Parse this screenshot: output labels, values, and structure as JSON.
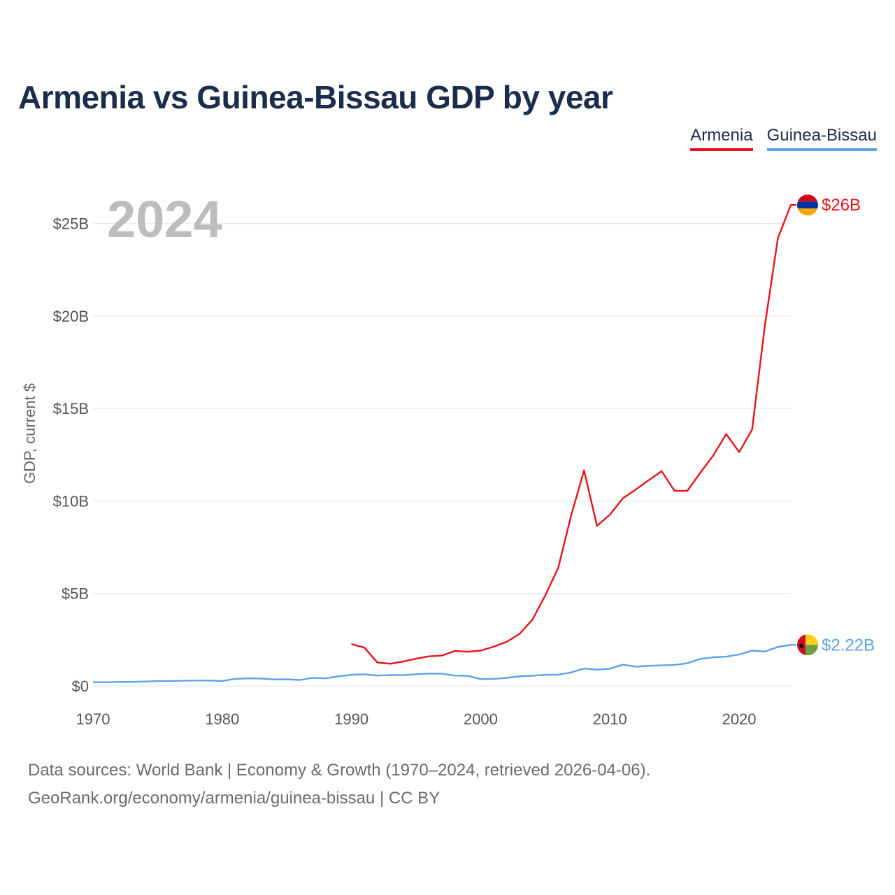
{
  "title": "Armenia vs Guinea-Bissau GDP by year",
  "legend": [
    {
      "name": "Armenia",
      "color": "#e8121a"
    },
    {
      "name": "Guinea-Bissau",
      "color": "#5ba3e6"
    }
  ],
  "current_year": "2024",
  "source_lines": [
    "Data sources: World Bank | Economy & Growth (1970–2024, retrieved 2026-04-06).",
    "GeoRank.org/economy/armenia/guinea-bissau | CC BY"
  ],
  "chart_data": {
    "type": "line",
    "title": "Armenia vs Guinea-Bissau GDP by year",
    "xlabel": "",
    "ylabel": "GDP, current $",
    "xlim": [
      1970,
      2024
    ],
    "ylim": [
      0,
      26.5
    ],
    "x_ticks": [
      1970,
      1980,
      1990,
      2000,
      2010,
      2020
    ],
    "x_tick_labels": [
      "1970",
      "1980",
      "1990",
      "2000",
      "2010",
      "2020"
    ],
    "y_ticks": [
      0,
      5,
      10,
      15,
      20,
      25
    ],
    "y_tick_labels": [
      "$0",
      "$5B",
      "$10B",
      "$15B",
      "$20B",
      "$25B"
    ],
    "grid": true,
    "legend_position": "top-right",
    "units": "billions of current US$",
    "series": [
      {
        "name": "Armenia",
        "color": "#e8121a",
        "end_label": "$26B",
        "x": [
          1990,
          1991,
          1992,
          1993,
          1994,
          1995,
          1996,
          1997,
          1998,
          1999,
          2000,
          2001,
          2002,
          2003,
          2004,
          2005,
          2006,
          2007,
          2008,
          2009,
          2010,
          2011,
          2012,
          2013,
          2014,
          2015,
          2016,
          2017,
          2018,
          2019,
          2020,
          2021,
          2022,
          2023,
          2024
        ],
        "values": [
          2.26,
          2.07,
          1.27,
          1.2,
          1.32,
          1.47,
          1.6,
          1.64,
          1.89,
          1.85,
          1.91,
          2.12,
          2.38,
          2.81,
          3.58,
          4.9,
          6.38,
          9.21,
          11.66,
          8.65,
          9.26,
          10.14,
          10.62,
          11.12,
          11.61,
          10.55,
          10.55,
          11.53,
          12.46,
          13.62,
          12.64,
          13.86,
          19.51,
          24.21,
          26.0
        ]
      },
      {
        "name": "Guinea-Bissau",
        "color": "#5ba3e6",
        "end_label": "$2.22B",
        "x": [
          1970,
          1971,
          1972,
          1973,
          1974,
          1975,
          1976,
          1977,
          1978,
          1979,
          1980,
          1981,
          1982,
          1983,
          1984,
          1985,
          1986,
          1987,
          1988,
          1989,
          1990,
          1991,
          1992,
          1993,
          1994,
          1995,
          1996,
          1997,
          1998,
          1999,
          2000,
          2001,
          2002,
          2003,
          2004,
          2005,
          2006,
          2007,
          2008,
          2009,
          2010,
          2011,
          2012,
          2013,
          2014,
          2015,
          2016,
          2017,
          2018,
          2019,
          2020,
          2021,
          2022,
          2023,
          2024
        ],
        "values": [
          0.2,
          0.2,
          0.22,
          0.22,
          0.24,
          0.26,
          0.27,
          0.28,
          0.29,
          0.29,
          0.27,
          0.38,
          0.41,
          0.4,
          0.35,
          0.36,
          0.32,
          0.44,
          0.41,
          0.52,
          0.6,
          0.63,
          0.56,
          0.59,
          0.58,
          0.63,
          0.67,
          0.66,
          0.56,
          0.55,
          0.37,
          0.38,
          0.43,
          0.52,
          0.55,
          0.6,
          0.61,
          0.73,
          0.94,
          0.88,
          0.93,
          1.15,
          1.04,
          1.09,
          1.11,
          1.13,
          1.23,
          1.46,
          1.55,
          1.58,
          1.7,
          1.91,
          1.86,
          2.11,
          2.22
        ]
      }
    ]
  }
}
